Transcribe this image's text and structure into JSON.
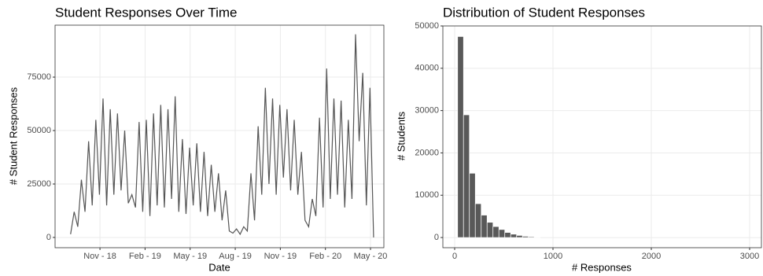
{
  "chart_data": [
    {
      "type": "line",
      "title": "Student Responses Over Time",
      "x_label": "Date",
      "y_label": "# Student Responses",
      "x": [
        2018.67,
        2018.69,
        2018.71,
        2018.73,
        2018.75,
        2018.77,
        2018.79,
        2018.81,
        2018.83,
        2018.85,
        2018.87,
        2018.89,
        2018.91,
        2018.93,
        2018.95,
        2018.97,
        2018.99,
        2019.01,
        2019.03,
        2019.05,
        2019.07,
        2019.09,
        2019.11,
        2019.13,
        2019.15,
        2019.17,
        2019.19,
        2019.21,
        2019.23,
        2019.25,
        2019.27,
        2019.29,
        2019.31,
        2019.33,
        2019.35,
        2019.37,
        2019.39,
        2019.41,
        2019.43,
        2019.45,
        2019.47,
        2019.49,
        2019.51,
        2019.53,
        2019.55,
        2019.57,
        2019.59,
        2019.61,
        2019.63,
        2019.65,
        2019.67,
        2019.69,
        2019.71,
        2019.73,
        2019.75,
        2019.77,
        2019.79,
        2019.81,
        2019.83,
        2019.85,
        2019.87,
        2019.89,
        2019.91,
        2019.93,
        2019.95,
        2019.97,
        2019.99,
        2020.01,
        2020.03,
        2020.05,
        2020.07,
        2020.09,
        2020.11,
        2020.13,
        2020.15,
        2020.17,
        2020.19,
        2020.21,
        2020.23,
        2020.25,
        2020.27,
        2020.29,
        2020.31,
        2020.33,
        2020.35
      ],
      "series": [
        {
          "name": "Responses",
          "color": "#555555",
          "values": [
            1500,
            12000,
            5000,
            27000,
            12000,
            45000,
            15000,
            55000,
            20000,
            65000,
            15000,
            60000,
            20000,
            58000,
            22000,
            50000,
            16000,
            20000,
            14000,
            54000,
            12000,
            55000,
            10000,
            58000,
            15000,
            62000,
            14000,
            60000,
            18000,
            66000,
            12000,
            46000,
            11000,
            42000,
            15000,
            44000,
            12000,
            40000,
            10000,
            34000,
            12000,
            30000,
            8000,
            22000,
            3000,
            2000,
            4000,
            1500,
            5000,
            3000,
            30000,
            8000,
            52000,
            20000,
            70000,
            25000,
            65000,
            20000,
            62000,
            28000,
            60000,
            22000,
            55000,
            20000,
            40000,
            8000,
            5000,
            18000,
            10000,
            56000,
            14000,
            79000,
            18000,
            65000,
            20000,
            64000,
            14000,
            55000,
            18000,
            95000,
            45000,
            77000,
            15000,
            70000,
            0
          ]
        }
      ],
      "xlim": [
        2018.584,
        2020.407
      ],
      "ylim": [
        -4800,
        99300
      ],
      "xticks": [
        {
          "value": 2018.833,
          "label": "Nov - 18"
        },
        {
          "value": 2019.083,
          "label": "Feb - 19"
        },
        {
          "value": 2019.333,
          "label": "May - 19"
        },
        {
          "value": 2019.583,
          "label": "Aug - 19"
        },
        {
          "value": 2019.833,
          "label": "Nov - 19"
        },
        {
          "value": 2020.083,
          "label": "Feb - 20"
        },
        {
          "value": 2020.333,
          "label": "May - 20"
        }
      ],
      "yticks": [
        0,
        25000,
        50000,
        75000
      ],
      "grid": true
    },
    {
      "type": "histogram",
      "title": "Distribution of Student Responses",
      "x_label": "# Responses",
      "y_label": "# Students",
      "bins": [
        30,
        90,
        150,
        210,
        270,
        330,
        390,
        450,
        510,
        570,
        630,
        690,
        750,
        810,
        870
      ],
      "values": [
        47500,
        29000,
        15200,
        8000,
        5300,
        3600,
        2600,
        1900,
        1200,
        800,
        500,
        300,
        200,
        100
      ],
      "color": "#595959",
      "xlim": [
        -120,
        3120
      ],
      "ylim": [
        -2400,
        50000
      ],
      "xticks": [
        0,
        1000,
        2000,
        3000
      ],
      "yticks": [
        0,
        10000,
        20000,
        30000,
        40000,
        50000
      ],
      "grid": true
    }
  ]
}
